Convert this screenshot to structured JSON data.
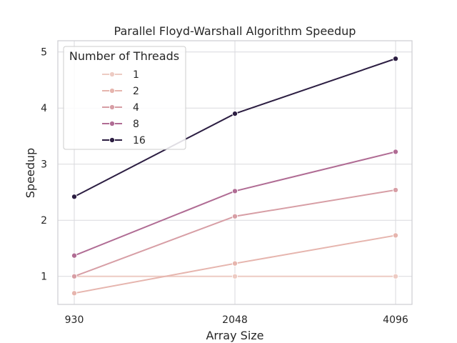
{
  "chart_data": {
    "type": "line",
    "title": "Parallel Floyd-Warshall Algorithm Speedup",
    "xlabel": "Array Size",
    "ylabel": "Speedup",
    "categories": [
      "930",
      "2048",
      "4096"
    ],
    "yticks": [
      "1",
      "2",
      "3",
      "4",
      "5"
    ],
    "ylim": [
      0.5,
      5.2
    ],
    "grid": true,
    "legend": {
      "title": "Number of Threads",
      "placement": "top-left"
    },
    "series": [
      {
        "name": "1",
        "color": "#edcbc3",
        "values": [
          1.0,
          1.0,
          1.0
        ]
      },
      {
        "name": "2",
        "color": "#e6b5ae",
        "values": [
          0.7,
          1.23,
          1.73
        ]
      },
      {
        "name": "4",
        "color": "#d79ea5",
        "values": [
          1.0,
          2.07,
          2.54
        ]
      },
      {
        "name": "8",
        "color": "#b06c94",
        "values": [
          1.37,
          2.52,
          3.22
        ]
      },
      {
        "name": "16",
        "color": "#2c1e42",
        "values": [
          2.42,
          3.9,
          4.88
        ]
      }
    ]
  }
}
